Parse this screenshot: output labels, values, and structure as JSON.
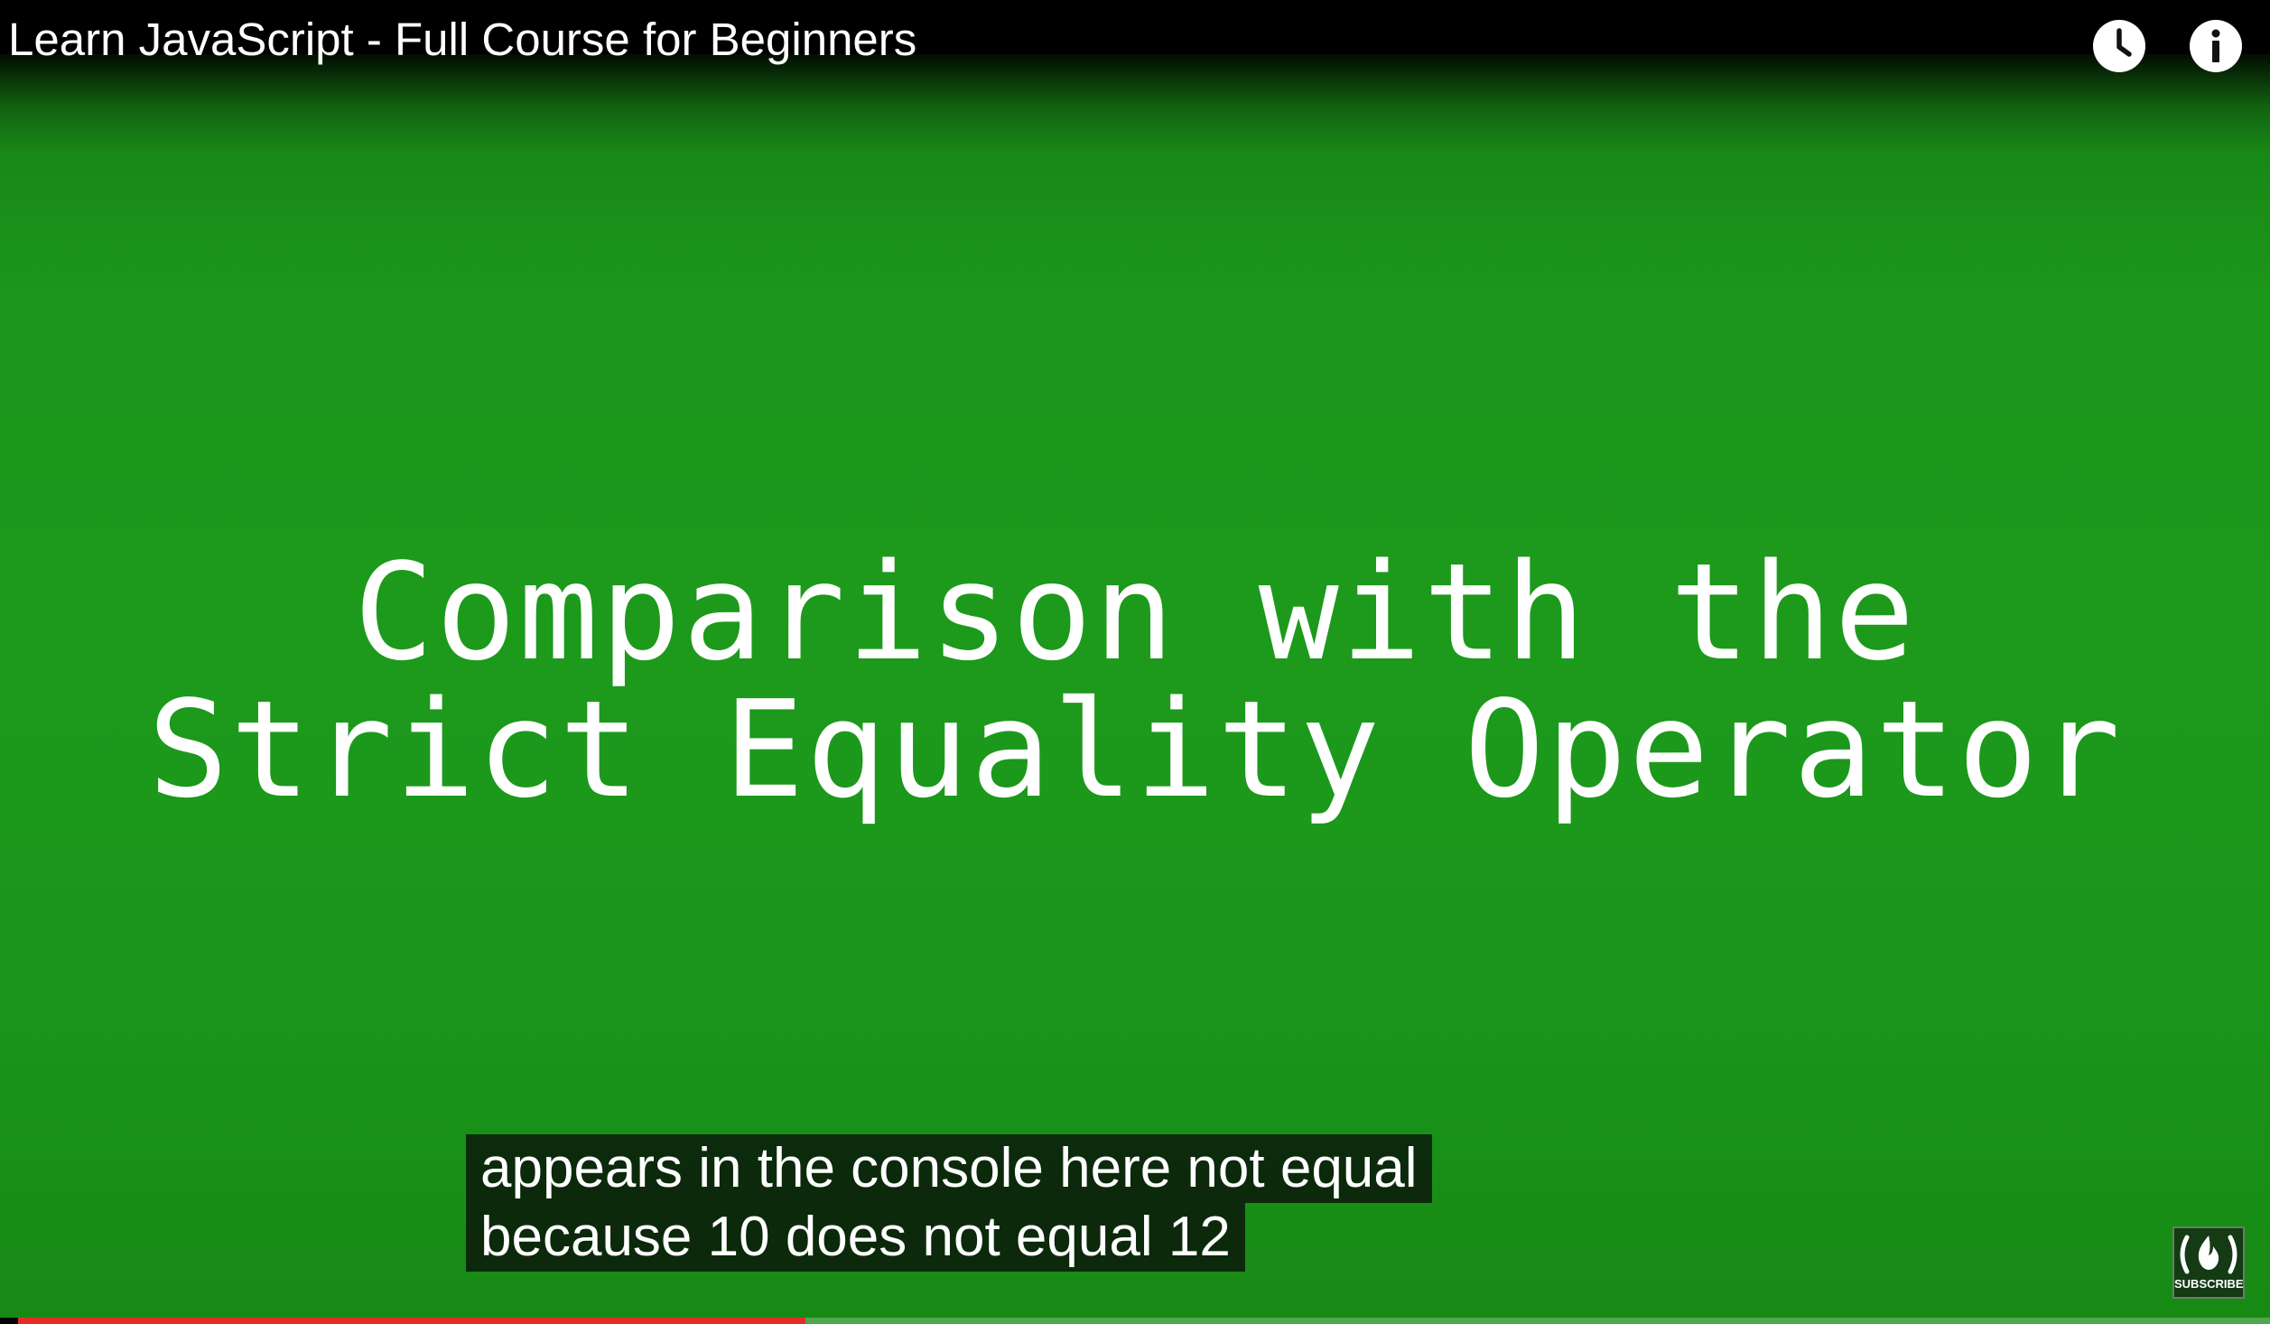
{
  "video": {
    "title": "Learn JavaScript - Full Course for Beginners"
  },
  "top_controls": {
    "watch_later_icon": "clock-icon",
    "info_icon": "info-icon"
  },
  "slide": {
    "line1": "Comparison with the",
    "line2": "Strict Equality Operator",
    "background_color": "#1d9a1c",
    "text_color": "#ffffff"
  },
  "captions": {
    "line1": "appears in the console here not equal",
    "line2": "because 10 does not equal 12"
  },
  "branding": {
    "icon": "freecodecamp-logo",
    "label": "SUBSCRIBE"
  },
  "progress": {
    "played_fraction": 0.355,
    "played_color": "#e52d27"
  }
}
